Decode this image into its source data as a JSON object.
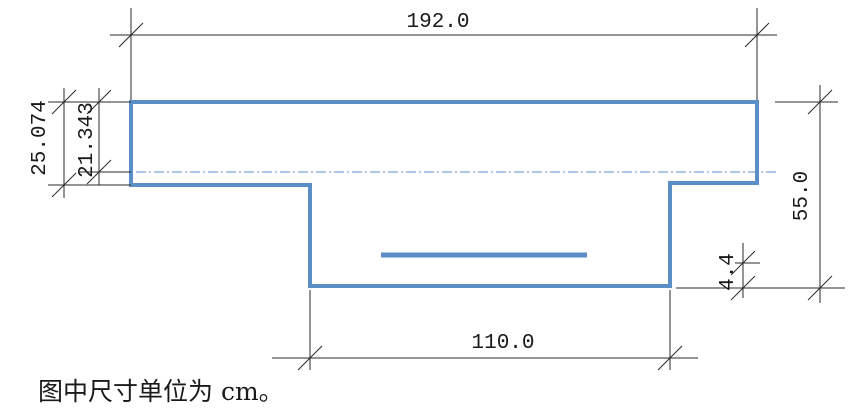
{
  "diagram": {
    "dimensions": {
      "top_width": "192.0",
      "bottom_width": "110.0",
      "total_height": "55.0",
      "flange_depth_outer": "25.074",
      "flange_depth_inner": "21.343",
      "bar_cover": "4.4"
    },
    "caption": "图中尺寸单位为 cm。"
  },
  "colors": {
    "section_stroke": "#5b8fc7",
    "dimension_stroke": "#2a2a2a"
  }
}
